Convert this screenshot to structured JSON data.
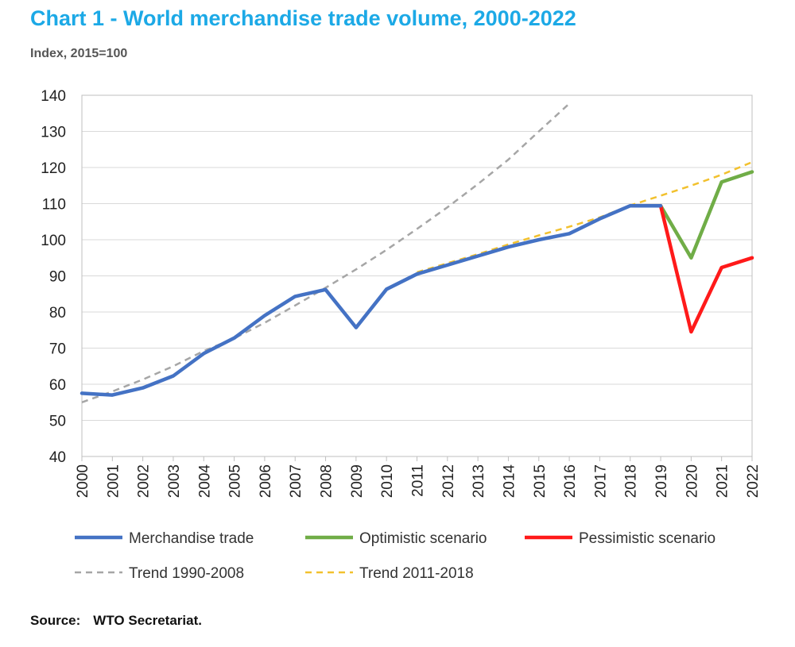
{
  "title": "Chart 1 - World merchandise trade volume, 2000-2022",
  "subtitle": "Index, 2015=100",
  "source_label": "Source:",
  "source_text": "WTO Secretariat.",
  "chart_data": {
    "type": "line",
    "title": "Chart 1 - World merchandise trade volume, 2000-2022",
    "ylabel": "Index, 2015=100",
    "xlabel": "",
    "ylim": [
      40,
      140
    ],
    "yticks": [
      40,
      50,
      60,
      70,
      80,
      90,
      100,
      110,
      120,
      130,
      140
    ],
    "x": [
      2000,
      2001,
      2002,
      2003,
      2004,
      2005,
      2006,
      2007,
      2008,
      2009,
      2010,
      2011,
      2012,
      2013,
      2014,
      2015,
      2016,
      2017,
      2018,
      2019,
      2020,
      2021,
      2022
    ],
    "grid": true,
    "legend_position": "bottom",
    "series": [
      {
        "name": "Merchandise trade",
        "color": "#4472c4",
        "style": "solid",
        "x": [
          2000,
          2001,
          2002,
          2003,
          2004,
          2005,
          2006,
          2007,
          2008,
          2009,
          2010,
          2011,
          2012,
          2013,
          2014,
          2015,
          2016,
          2017,
          2018,
          2019
        ],
        "values": [
          57.5,
          57,
          59,
          62.3,
          68.5,
          72.8,
          79,
          84.3,
          86.2,
          75.7,
          86.3,
          90.5,
          93,
          95.5,
          98,
          100,
          101.7,
          105.8,
          109.4,
          109.4
        ]
      },
      {
        "name": "Optimistic scenario",
        "color": "#70ad47",
        "style": "solid",
        "x": [
          2019,
          2020,
          2021,
          2022
        ],
        "values": [
          109.4,
          95,
          116,
          118.8
        ]
      },
      {
        "name": "Pessimistic scenario",
        "color": "#ff1a1a",
        "style": "solid",
        "x": [
          2019,
          2020,
          2021,
          2022
        ],
        "values": [
          109.4,
          74.5,
          92.3,
          95
        ]
      },
      {
        "name": "Trend 1990-2008",
        "color": "#a6a6a6",
        "style": "dashed",
        "x": [
          2000,
          2001,
          2002,
          2003,
          2004,
          2005,
          2006,
          2007,
          2008,
          2009,
          2010,
          2011,
          2012,
          2013,
          2014,
          2015,
          2016
        ],
        "values": [
          55,
          58,
          61.3,
          65,
          69.2,
          72.7,
          77,
          81.8,
          86.7,
          91.8,
          97.2,
          103,
          109,
          115.4,
          122.2,
          130,
          137.7
        ]
      },
      {
        "name": "Trend 2011-2018",
        "color": "#f2c12e",
        "style": "dashed",
        "x": [
          2011,
          2012,
          2013,
          2014,
          2015,
          2016,
          2017,
          2018,
          2019,
          2020,
          2021,
          2022
        ],
        "values": [
          91,
          93.5,
          96,
          98.7,
          101.2,
          103.6,
          106.2,
          109.5,
          112.2,
          115,
          118,
          121.5
        ]
      }
    ]
  }
}
